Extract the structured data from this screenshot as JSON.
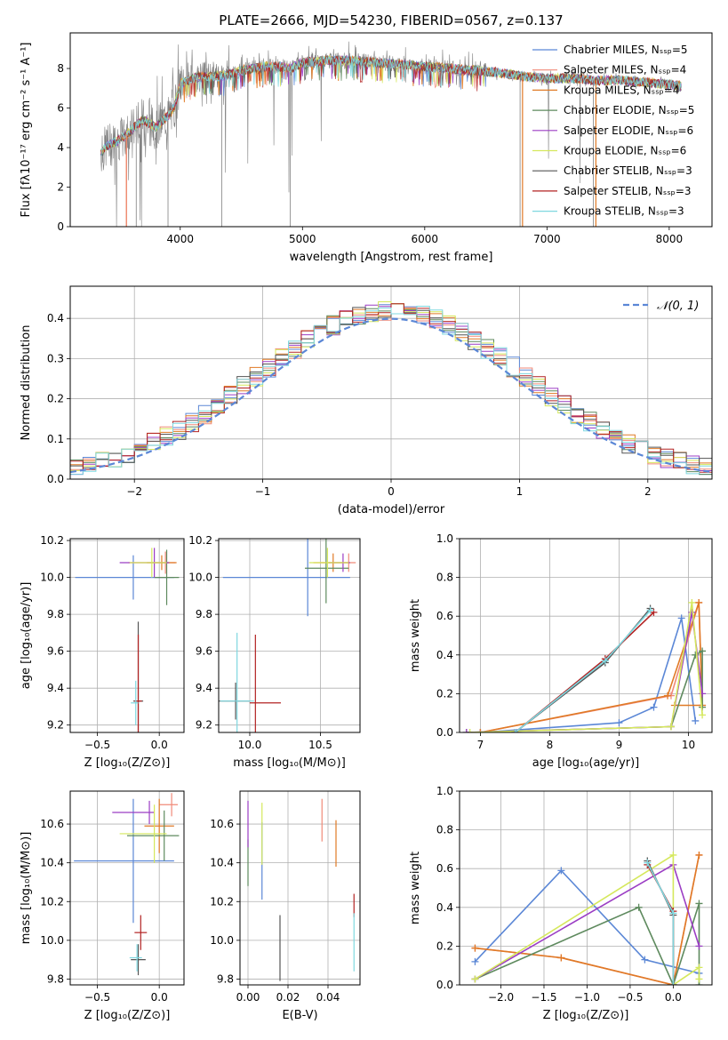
{
  "figure": {
    "title": "PLATE=2666, MJD=54230, FIBERID=0567, z=0.137"
  },
  "chart_data": [
    {
      "id": "spectrum",
      "type": "line",
      "xlabel": "wavelength [Angstrom, rest frame]",
      "ylabel": "Flux [fλ10⁻¹⁷ erg cm⁻² s⁻¹ A⁻¹]",
      "xlim": [
        3100,
        8350
      ],
      "ylim": [
        0,
        9.8
      ],
      "xticks": [
        4000,
        5000,
        6000,
        7000,
        8000
      ],
      "yticks": [
        0,
        2,
        4,
        6,
        8
      ],
      "grid": false,
      "legend_position": "right",
      "series": [
        {
          "name": "Chabrier MILES, N_SSP=5",
          "color": "#5b87d6",
          "width": 1
        },
        {
          "name": "Salpeter MILES, N_SSP=4",
          "color": "#f08a78",
          "width": 1
        },
        {
          "name": "Kroupa MILES, N_SSP=4",
          "color": "#e07a26",
          "width": 1.3
        },
        {
          "name": "Chabrier ELODIE, N_SSP=5",
          "color": "#5e8a5e",
          "width": 1
        },
        {
          "name": "Salpeter ELODIE, N_SSP=6",
          "color": "#9b3dc4",
          "width": 1
        },
        {
          "name": "Kroupa ELODIE, N_SSP=6",
          "color": "#d5e85c",
          "width": 1
        },
        {
          "name": "Chabrier STELIB, N_SSP=3",
          "color": "#555555",
          "width": 1
        },
        {
          "name": "Salpeter STELIB, N_SSP=3",
          "color": "#b22222",
          "width": 1
        },
        {
          "name": "Kroupa STELIB, N_SSP=3",
          "color": "#7fd8e0",
          "width": 1
        }
      ],
      "data_color": "#808080",
      "continuum": {
        "x": [
          3350,
          3400,
          3450,
          3500,
          3550,
          3600,
          3650,
          3700,
          3750,
          3800,
          3850,
          3900,
          3950,
          4000,
          4100,
          4200,
          4300,
          4400,
          4500,
          4600,
          4700,
          4800,
          4900,
          5000,
          5200,
          5400,
          5600,
          5800,
          6000,
          6200,
          6400,
          6600,
          6800,
          7000,
          7200,
          7400,
          7600,
          7800,
          8000,
          8100
        ],
        "y": [
          3.7,
          4.1,
          4.2,
          4.4,
          4.6,
          4.9,
          5.2,
          5.4,
          5.2,
          5.0,
          5.3,
          5.6,
          6.0,
          7.2,
          7.5,
          7.6,
          7.6,
          7.7,
          7.9,
          8.0,
          8.1,
          8.1,
          8.0,
          8.3,
          8.4,
          8.4,
          8.3,
          8.2,
          8.1,
          8.0,
          7.9,
          7.8,
          7.6,
          7.5,
          7.5,
          7.4,
          7.4,
          7.3,
          7.2,
          7.1
        ]
      }
    },
    {
      "id": "residuals",
      "type": "histogram",
      "xlabel": "(data-model)/error",
      "ylabel": "Normed distribution",
      "xlim": [
        -2.5,
        2.5
      ],
      "ylim": [
        0,
        0.48
      ],
      "xticks": [
        -2,
        -1,
        0,
        1,
        2
      ],
      "yticks": [
        0.0,
        0.1,
        0.2,
        0.3,
        0.4
      ],
      "grid": true,
      "legend_position": "top-right",
      "reference": {
        "name": "𝒩(0, 1)",
        "color": "#5b87d6",
        "mean": 0,
        "sigma": 1
      },
      "bin_width": 0.1
    },
    {
      "id": "age-vs-Z",
      "type": "scatter",
      "xlabel": "Z [log₁₀(Z/Z⊙)]",
      "ylabel": "age  [log₁₀(age/yr)]",
      "xlim": [
        -0.72,
        0.2
      ],
      "ylim": [
        9.16,
        10.21
      ],
      "xticks": [
        -0.5,
        0.0
      ],
      "yticks": [
        9.2,
        9.4,
        9.6,
        9.8,
        10.0,
        10.2
      ],
      "grid": true,
      "points": [
        {
          "series": "Chabrier MILES",
          "x": -0.21,
          "y": 10.0,
          "xerr": [
            0.47,
            0.33
          ],
          "yerr": 0.12,
          "color": "#5b87d6"
        },
        {
          "series": "Salpeter MILES",
          "x": 0.05,
          "y": 10.08,
          "xerr": [
            0.3,
            0.08
          ],
          "yerr": 0.06,
          "color": "#f08a78"
        },
        {
          "series": "Kroupa MILES",
          "x": 0.02,
          "y": 10.08,
          "xerr": [
            0.12,
            0.12
          ],
          "yerr": 0.04,
          "color": "#e07a26"
        },
        {
          "series": "Chabrier ELODIE",
          "x": 0.06,
          "y": 10.0,
          "xerr": [
            0.1,
            0.1
          ],
          "yerr": 0.15,
          "color": "#5e8a5e"
        },
        {
          "series": "Salpeter ELODIE",
          "x": -0.04,
          "y": 10.08,
          "xerr": [
            0.28,
            0.12
          ],
          "yerr": 0.08,
          "color": "#9b3dc4"
        },
        {
          "series": "Kroupa ELODIE",
          "x": -0.06,
          "y": 10.08,
          "xerr": [
            0.18,
            0.12
          ],
          "yerr": 0.08,
          "color": "#d5e85c"
        },
        {
          "series": "Chabrier STELIB",
          "x": -0.17,
          "y": 9.33,
          "xerr": [
            0.04,
            0.04
          ],
          "yerr": 0.43,
          "color": "#555555"
        },
        {
          "series": "Salpeter STELIB",
          "x": -0.17,
          "y": 9.33,
          "xerr": [
            0.03,
            0.03
          ],
          "yerr": 0.36,
          "color": "#b22222"
        },
        {
          "series": "Kroupa STELIB",
          "x": -0.19,
          "y": 9.32,
          "xerr": [
            0.04,
            0.02
          ],
          "yerr": 0.12,
          "color": "#7fd8e0"
        }
      ]
    },
    {
      "id": "age-vs-mass",
      "type": "scatter",
      "xlabel": "mass [log₁₀(M/M⊙)]",
      "ylabel": "",
      "xlim": [
        9.78,
        10.78
      ],
      "ylim": [
        9.16,
        10.21
      ],
      "xticks": [
        10.0,
        10.5
      ],
      "yticks": [
        9.2,
        9.4,
        9.6,
        9.8,
        10.0,
        10.2
      ],
      "grid": true,
      "points": [
        {
          "series": "Chabrier MILES",
          "x": 10.41,
          "y": 10.0,
          "xerr": [
            0.6,
            0.3
          ],
          "yerr": 0.21,
          "color": "#5b87d6"
        },
        {
          "series": "Salpeter MILES",
          "x": 10.7,
          "y": 10.08,
          "xerr": [
            0.2,
            0.05
          ],
          "yerr": 0.05,
          "color": "#f08a78"
        },
        {
          "series": "Kroupa MILES",
          "x": 10.59,
          "y": 10.08,
          "xerr": [
            0.14,
            0.11
          ],
          "yerr": 0.05,
          "color": "#e07a26"
        },
        {
          "series": "Chabrier ELODIE",
          "x": 10.54,
          "y": 10.05,
          "xerr": [
            0.15,
            0.16
          ],
          "yerr": 0.19,
          "color": "#5e8a5e"
        },
        {
          "series": "Salpeter ELODIE",
          "x": 10.66,
          "y": 10.08,
          "xerr": [
            0.1,
            0.05
          ],
          "yerr": 0.05,
          "color": "#9b3dc4"
        },
        {
          "series": "Kroupa ELODIE",
          "x": 10.55,
          "y": 10.08,
          "xerr": [
            0.13,
            0.15
          ],
          "yerr": 0.08,
          "color": "#d5e85c"
        },
        {
          "series": "Chabrier STELIB",
          "x": 9.9,
          "y": 9.33,
          "xerr": [
            0.12,
            0.1
          ],
          "yerr": 0.1,
          "color": "#555555"
        },
        {
          "series": "Salpeter STELIB",
          "x": 10.04,
          "y": 9.32,
          "xerr": [
            0.04,
            0.18
          ],
          "yerr": 0.37,
          "color": "#b22222"
        },
        {
          "series": "Kroupa STELIB",
          "x": 9.91,
          "y": 9.33,
          "xerr": [
            0.12,
            0.12
          ],
          "yerr": 0.37,
          "color": "#7fd8e0"
        }
      ]
    },
    {
      "id": "weight-vs-age",
      "type": "line",
      "xlabel": "age  [log₁₀(age/yr)]",
      "ylabel": "mass weight",
      "xlim": [
        6.7,
        10.34
      ],
      "ylim": [
        0,
        1.0
      ],
      "xticks": [
        7,
        8,
        9,
        10
      ],
      "yticks": [
        0.0,
        0.2,
        0.4,
        0.6,
        0.8,
        1.0
      ],
      "grid": true,
      "series": [
        {
          "name": "Chabrier MILES",
          "color": "#5b87d6",
          "x": [
            7.0,
            9.0,
            9.5,
            9.9,
            10.1
          ],
          "y": [
            0.0,
            0.05,
            0.13,
            0.59,
            0.06
          ]
        },
        {
          "name": "Salpeter MILES",
          "color": "#f08a78",
          "x": [
            7.0,
            9.75,
            10.15,
            10.2
          ],
          "y": [
            0.0,
            0.19,
            0.67,
            0.14
          ]
        },
        {
          "name": "Kroupa MILES",
          "color": "#e07a26",
          "x": [
            7.0,
            9.7,
            10.15,
            10.2,
            9.8
          ],
          "y": [
            0.0,
            0.19,
            0.67,
            0.14,
            0.14
          ]
        },
        {
          "name": "Chabrier ELODIE",
          "color": "#5e8a5e",
          "x": [
            6.8,
            9.75,
            10.1,
            10.2,
            10.2
          ],
          "y": [
            0.0,
            0.03,
            0.4,
            0.42,
            0.13
          ]
        },
        {
          "name": "Salpeter ELODIE",
          "color": "#9b3dc4",
          "x": [
            6.8,
            9.75,
            10.05,
            10.2
          ],
          "y": [
            0.0,
            0.03,
            0.62,
            0.2
          ]
        },
        {
          "name": "Kroupa ELODIE",
          "color": "#d5e85c",
          "x": [
            6.85,
            9.75,
            10.05,
            10.2
          ],
          "y": [
            0.0,
            0.03,
            0.67,
            0.09
          ]
        },
        {
          "name": "Chabrier STELIB",
          "color": "#555555",
          "x": [
            7.5,
            8.8,
            9.45
          ],
          "y": [
            0.0,
            0.36,
            0.64
          ]
        },
        {
          "name": "Salpeter STELIB",
          "color": "#b22222",
          "x": [
            7.5,
            8.8,
            9.5
          ],
          "y": [
            0.0,
            0.38,
            0.62
          ]
        },
        {
          "name": "Kroupa STELIB",
          "color": "#7fd8e0",
          "x": [
            7.5,
            8.8,
            9.45
          ],
          "y": [
            0.0,
            0.37,
            0.63
          ]
        }
      ]
    },
    {
      "id": "mass-vs-Z",
      "type": "scatter",
      "xlabel": "Z [log₁₀(Z/Z⊙)]",
      "ylabel": "mass [log₁₀(M/M⊙)]",
      "xlim": [
        -0.72,
        0.2
      ],
      "ylim": [
        9.77,
        10.77
      ],
      "xticks": [
        -0.5,
        0.0
      ],
      "yticks": [
        9.8,
        10.0,
        10.2,
        10.4,
        10.6
      ],
      "grid": true,
      "points": [
        {
          "series": "Chabrier MILES",
          "x": -0.21,
          "y": 10.41,
          "xerr": [
            0.48,
            0.33
          ],
          "yerr": 0.32,
          "color": "#5b87d6"
        },
        {
          "series": "Salpeter MILES",
          "x": 0.1,
          "y": 10.7,
          "xerr": [
            0.1,
            0.05
          ],
          "yerr": 0.06,
          "color": "#f08a78"
        },
        {
          "series": "Kroupa MILES",
          "x": 0.0,
          "y": 10.59,
          "xerr": [
            0.12,
            0.12
          ],
          "yerr": 0.14,
          "color": "#e07a26"
        },
        {
          "series": "Chabrier ELODIE",
          "x": 0.04,
          "y": 10.54,
          "xerr": [
            0.3,
            0.12
          ],
          "yerr": 0.13,
          "color": "#5e8a5e"
        },
        {
          "series": "Salpeter ELODIE",
          "x": -0.08,
          "y": 10.66,
          "xerr": [
            0.3,
            0.04
          ],
          "yerr": 0.06,
          "color": "#9b3dc4"
        },
        {
          "series": "Kroupa ELODIE",
          "x": -0.04,
          "y": 10.55,
          "xerr": [
            0.28,
            0.1
          ],
          "yerr": 0.15,
          "color": "#d5e85c"
        },
        {
          "series": "Chabrier STELIB",
          "x": -0.17,
          "y": 9.9,
          "xerr": [
            0.06,
            0.06
          ],
          "yerr": 0.08,
          "color": "#555555"
        },
        {
          "series": "Salpeter STELIB",
          "x": -0.15,
          "y": 10.04,
          "xerr": [
            0.05,
            0.05
          ],
          "yerr": 0.09,
          "color": "#b22222"
        },
        {
          "series": "Kroupa STELIB",
          "x": -0.18,
          "y": 9.91,
          "xerr": [
            0.06,
            0.04
          ],
          "yerr": 0.07,
          "color": "#7fd8e0"
        }
      ]
    },
    {
      "id": "mass-vs-EBV",
      "type": "scatter",
      "xlabel": "E(B-V)",
      "ylabel": "",
      "xlim": [
        -0.004,
        0.056
      ],
      "ylim": [
        9.77,
        10.77
      ],
      "xticks": [
        0.0,
        0.02,
        0.04
      ],
      "yticks": [
        9.8,
        10.0,
        10.2,
        10.4,
        10.6
      ],
      "grid": true,
      "points": [
        {
          "series": "Chabrier MILES",
          "x": 0.007,
          "y": 10.41,
          "xerr": [
            0,
            0
          ],
          "yerr": 0.2,
          "color": "#5b87d6"
        },
        {
          "series": "Salpeter MILES",
          "x": 0.037,
          "y": 10.62,
          "xerr": [
            0,
            0
          ],
          "yerr": 0.11,
          "color": "#f08a78"
        },
        {
          "series": "Kroupa MILES",
          "x": 0.044,
          "y": 10.5,
          "xerr": [
            0,
            0
          ],
          "yerr": 0.12,
          "color": "#e07a26"
        },
        {
          "series": "Chabrier ELODIE",
          "x": 0.0,
          "y": 10.4,
          "xerr": [
            0,
            0
          ],
          "yerr": 0.12,
          "color": "#5e8a5e"
        },
        {
          "series": "Salpeter ELODIE",
          "x": 0.0,
          "y": 10.6,
          "xerr": [
            0,
            0
          ],
          "yerr": 0.12,
          "color": "#9b3dc4"
        },
        {
          "series": "Kroupa ELODIE",
          "x": 0.007,
          "y": 10.55,
          "xerr": [
            0,
            0
          ],
          "yerr": 0.16,
          "color": "#d5e85c"
        },
        {
          "series": "Chabrier STELIB",
          "x": 0.016,
          "y": 9.96,
          "xerr": [
            0,
            0
          ],
          "yerr": 0.17,
          "color": "#555555"
        },
        {
          "series": "Salpeter STELIB",
          "x": 0.053,
          "y": 10.18,
          "xerr": [
            0,
            0
          ],
          "yerr": 0.06,
          "color": "#b22222"
        },
        {
          "series": "Kroupa STELIB",
          "x": 0.053,
          "y": 9.99,
          "xerr": [
            0,
            0
          ],
          "yerr": 0.15,
          "color": "#7fd8e0"
        }
      ]
    },
    {
      "id": "weight-vs-Z",
      "type": "line",
      "xlabel": "Z [log₁₀(Z/Z⊙)]",
      "ylabel": "mass weight",
      "xlim": [
        -2.48,
        0.45
      ],
      "ylim": [
        0,
        1.0
      ],
      "xticks": [
        -2.0,
        -1.5,
        -1.0,
        -0.5,
        0.0
      ],
      "yticks": [
        0.0,
        0.2,
        0.4,
        0.6,
        0.8,
        1.0
      ],
      "grid": true,
      "series": [
        {
          "name": "Chabrier MILES",
          "color": "#5b87d6",
          "x": [
            -2.3,
            -1.3,
            -0.33,
            0.3
          ],
          "y": [
            0.12,
            0.59,
            0.13,
            0.06
          ]
        },
        {
          "name": "Salpeter MILES",
          "color": "#f08a78",
          "x": [
            -2.3,
            -1.3,
            0.0,
            0.3
          ],
          "y": [
            0.19,
            0.14,
            0.0,
            0.67
          ]
        },
        {
          "name": "Kroupa MILES",
          "color": "#e07a26",
          "x": [
            -2.3,
            -1.3,
            0.0,
            0.3
          ],
          "y": [
            0.19,
            0.14,
            0.0,
            0.67
          ]
        },
        {
          "name": "Chabrier ELODIE",
          "color": "#5e8a5e",
          "x": [
            -2.3,
            -0.4,
            0.0,
            0.3,
            0.3
          ],
          "y": [
            0.03,
            0.4,
            0.0,
            0.42,
            0.0
          ]
        },
        {
          "name": "Salpeter ELODIE",
          "color": "#9b3dc4",
          "x": [
            -2.3,
            0.0,
            0.3
          ],
          "y": [
            0.03,
            0.62,
            0.2
          ]
        },
        {
          "name": "Kroupa ELODIE",
          "color": "#d5e85c",
          "x": [
            -2.3,
            0.0,
            0.0,
            0.3,
            0.3
          ],
          "y": [
            0.03,
            0.67,
            0.0,
            0.09,
            0.03
          ]
        },
        {
          "name": "Chabrier STELIB",
          "color": "#555555",
          "x": [
            -0.3,
            0.0,
            0.0
          ],
          "y": [
            0.64,
            0.36,
            0.0
          ]
        },
        {
          "name": "Salpeter STELIB",
          "color": "#b22222",
          "x": [
            -0.3,
            0.0,
            0.0
          ],
          "y": [
            0.62,
            0.38,
            0.0
          ]
        },
        {
          "name": "Kroupa STELIB",
          "color": "#7fd8e0",
          "x": [
            -0.3,
            0.0,
            0.0
          ],
          "y": [
            0.63,
            0.37,
            0.0
          ]
        }
      ]
    }
  ]
}
